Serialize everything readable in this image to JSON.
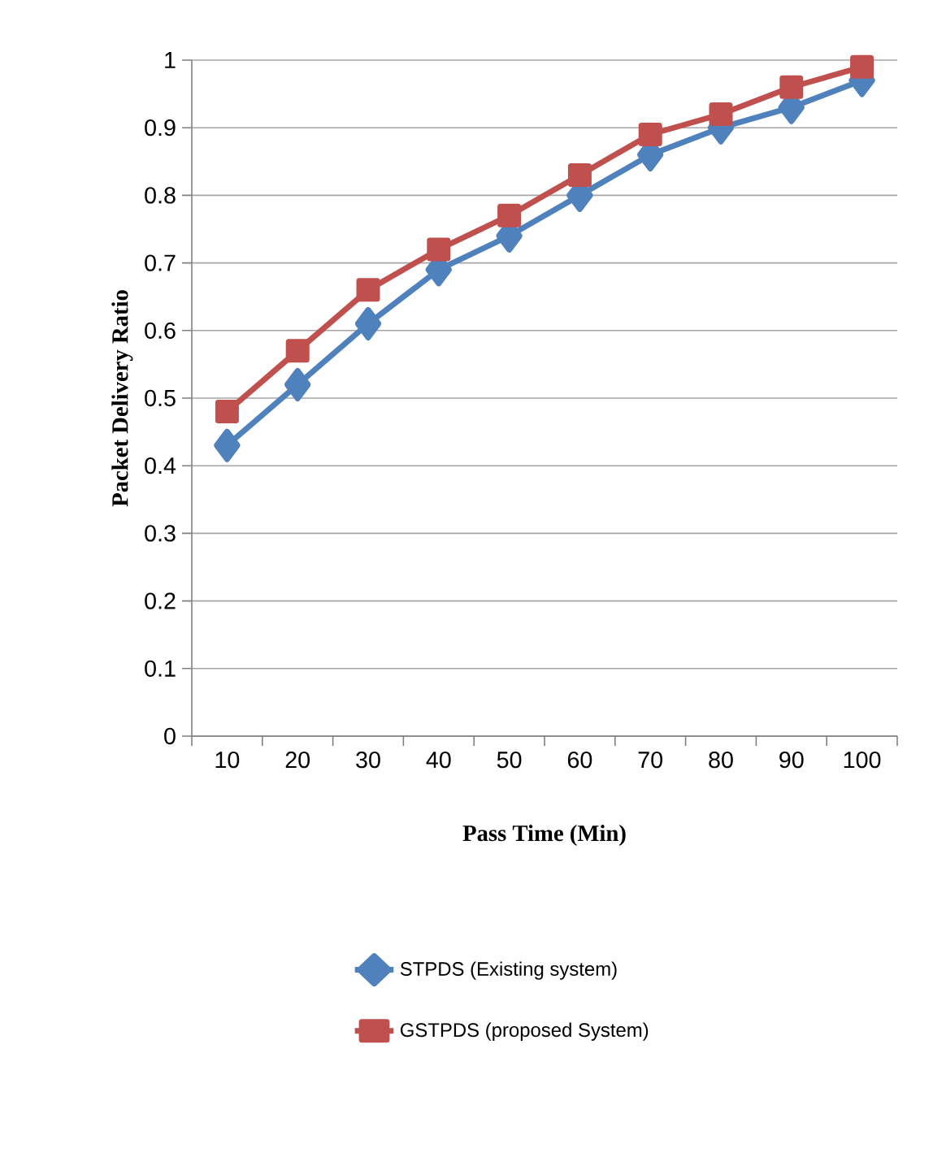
{
  "chart_data": {
    "type": "line",
    "xlabel": "Pass Time (Min)",
    "ylabel": "Packet Delivery Ratio",
    "categories": [
      "10",
      "20",
      "30",
      "40",
      "50",
      "60",
      "70",
      "80",
      "90",
      "100"
    ],
    "series": [
      {
        "name": "STPDS (Existing system)",
        "color": "#4f81bd",
        "marker": "diamond",
        "values": [
          0.43,
          0.52,
          0.61,
          0.69,
          0.74,
          0.8,
          0.86,
          0.9,
          0.93,
          0.97
        ]
      },
      {
        "name": "GSTPDS (proposed System)",
        "color": "#c0504d",
        "marker": "square",
        "values": [
          0.48,
          0.57,
          0.66,
          0.72,
          0.77,
          0.83,
          0.89,
          0.92,
          0.96,
          0.99
        ]
      }
    ],
    "ylim": [
      0,
      1
    ],
    "yticks": [
      0,
      0.1,
      0.2,
      0.3,
      0.4,
      0.5,
      0.6,
      0.7,
      0.8,
      0.9,
      1
    ],
    "grid": "y",
    "legend": "bottom",
    "line_style": "solid"
  }
}
